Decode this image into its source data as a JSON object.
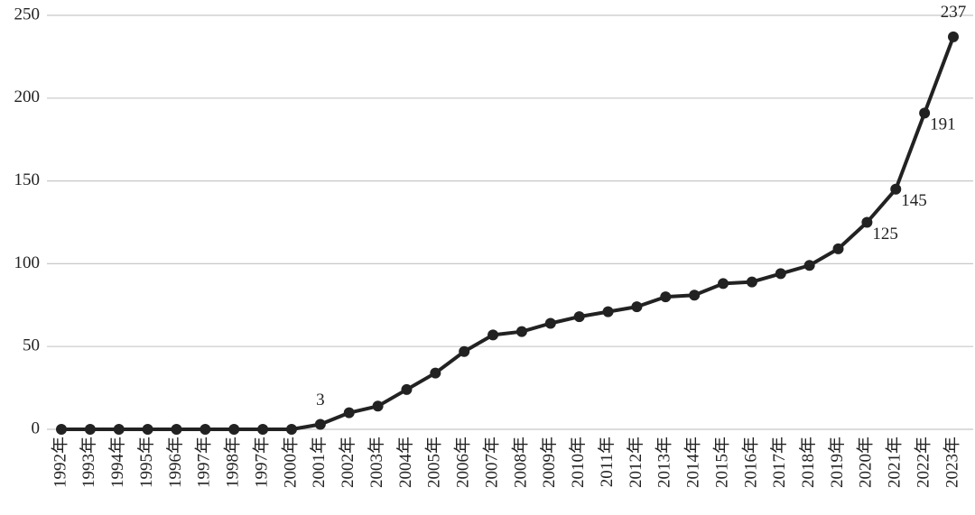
{
  "chart_data": {
    "type": "line",
    "categories": [
      "1992年",
      "1993年",
      "1994年",
      "1995年",
      "1996年",
      "1997年",
      "1998年",
      "1997年",
      "2000年",
      "2001年",
      "2002年",
      "2003年",
      "2004年",
      "2005年",
      "2006年",
      "2007年",
      "2008年",
      "2009年",
      "2010年",
      "2011年",
      "2012年",
      "2013年",
      "2014年",
      "2015年",
      "2016年",
      "2017年",
      "2018年",
      "2019年",
      "2020年",
      "2021年",
      "2022年",
      "2023年"
    ],
    "values": [
      0,
      0,
      0,
      0,
      0,
      0,
      0,
      0,
      0,
      3,
      10,
      14,
      24,
      34,
      47,
      57,
      59,
      64,
      68,
      71,
      74,
      80,
      81,
      88,
      89,
      94,
      99,
      109,
      125,
      145,
      191,
      237
    ],
    "value_labels": [
      null,
      null,
      null,
      null,
      null,
      null,
      null,
      null,
      null,
      "3",
      null,
      null,
      null,
      null,
      null,
      null,
      null,
      null,
      null,
      null,
      null,
      null,
      null,
      null,
      null,
      null,
      null,
      null,
      "125",
      "145",
      "191",
      "237"
    ],
    "color": "#222222",
    "ylim": [
      0,
      250
    ],
    "yticks": [
      0,
      50,
      100,
      150,
      200,
      250
    ],
    "grid": true
  }
}
